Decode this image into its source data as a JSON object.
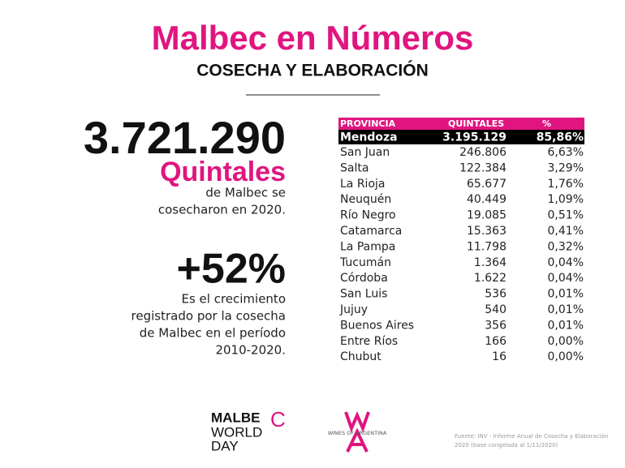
{
  "header": {
    "title": "Malbec en Números",
    "subtitle": "COSECHA Y ELABORACIÓN"
  },
  "highlight_1": {
    "number": "3.721.290",
    "unit": "Quintales",
    "text": [
      "de Malbec se",
      "cosecharon  en 2020."
    ]
  },
  "highlight_2": {
    "number": "+52%",
    "text": [
      "Es el crecimiento",
      "registrado por la cosecha",
      "de Malbec en el período",
      "2010-2020."
    ]
  },
  "table": {
    "header": [
      "PROVINCIA",
      "QUINTALES",
      "%"
    ],
    "rows": [
      [
        "Mendoza",
        "3.195.129",
        "85,86%"
      ],
      [
        "San Juan",
        "246.806",
        "6,63%"
      ],
      [
        "Salta",
        "122.384",
        "3,29%"
      ],
      [
        "La Rioja",
        "65.677",
        "1,76%"
      ],
      [
        "Neuquén",
        "40.449",
        "1,09%"
      ],
      [
        "Río Negro",
        "19.085",
        "0,51%"
      ],
      [
        "Catamarca",
        "15.363",
        "0,41%"
      ],
      [
        "La Pampa",
        "11.798",
        "0,32%"
      ],
      [
        "Tucumán",
        "1.364",
        "0,04%"
      ],
      [
        "Córdoba",
        "1.622",
        "0,04%"
      ],
      [
        "San Luis",
        "536",
        "0,01%"
      ],
      [
        "Jujuy",
        "540",
        "0,01%"
      ],
      [
        "Buenos Aires",
        "356",
        "0,01%"
      ],
      [
        "Entre Ríos",
        "166",
        "0,00%"
      ],
      [
        "Chubut",
        "16",
        "0,00%"
      ]
    ]
  },
  "logos": {
    "malbec_world_day": [
      "MALBE",
      "C",
      "WORLD",
      "DAY"
    ],
    "wines_of_argentina": "WINES OF ARGENTINA"
  },
  "footnote": [
    "Fuente: INV - Informe Anual de Cosecha y Elaboración",
    "2020 (base congelada al 1/11/2020)"
  ]
}
